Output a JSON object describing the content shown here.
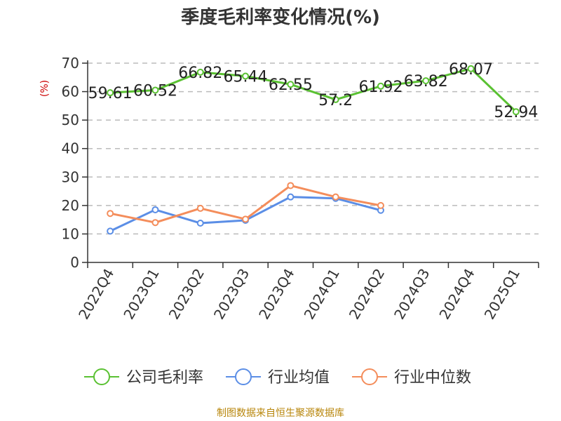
{
  "chart_data": {
    "type": "line",
    "title": "季度毛利率变化情况(%)",
    "ylabel": "(%)",
    "ylim": [
      0,
      70
    ],
    "yticks": [
      0,
      10,
      20,
      30,
      40,
      50,
      60,
      70
    ],
    "grid": true,
    "legend_position": "bottom",
    "categories": [
      "2022Q4",
      "2023Q1",
      "2023Q2",
      "2023Q3",
      "2023Q4",
      "2024Q1",
      "2024Q2",
      "2024Q3",
      "2024Q4",
      "2025Q1"
    ],
    "series": [
      {
        "name": "公司毛利率",
        "color": "#5ac132",
        "values": [
          59.61,
          60.52,
          66.82,
          65.44,
          62.55,
          57.2,
          61.92,
          63.82,
          68.07,
          52.94
        ],
        "labels": [
          "59.61",
          "60.52",
          "66.82",
          "65.44",
          "62.55",
          "57.2",
          "61.92",
          "63.82",
          "68.07",
          "52.94"
        ]
      },
      {
        "name": "行业均值",
        "color": "#5b8ee6",
        "values": [
          11,
          18.5,
          13.8,
          14.8,
          23,
          22.5,
          18.3,
          null,
          null,
          null
        ]
      },
      {
        "name": "行业中位数",
        "color": "#f48d5b",
        "values": [
          17.2,
          14,
          19,
          15.2,
          27,
          23,
          20,
          null,
          null,
          null
        ]
      }
    ]
  },
  "source": "制图数据来自恒生聚源数据库"
}
